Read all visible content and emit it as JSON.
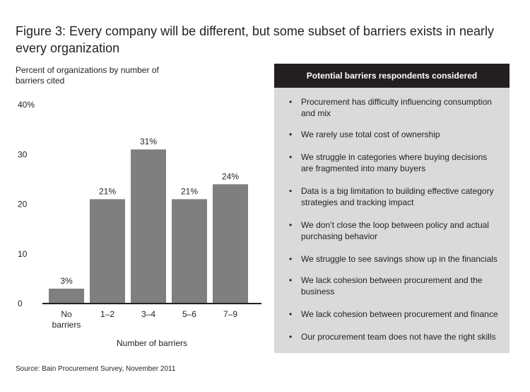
{
  "figure": {
    "title": "Figure 3: Every company will be different, but some subset of barriers exists in nearly every organization",
    "source": "Source: Bain Procurement Survey, November 2011"
  },
  "chart_data": {
    "type": "bar",
    "title": "",
    "ylabel": "Percent of organizations by number of barriers cited",
    "xlabel": "Number of barriers",
    "categories": [
      "No barriers",
      "1–2",
      "3–4",
      "5–6",
      "7–9"
    ],
    "category_lines": [
      [
        "No",
        "barriers"
      ],
      [
        "1–2"
      ],
      [
        "3–4"
      ],
      [
        "5–6"
      ],
      [
        "7–9"
      ]
    ],
    "values": [
      3,
      21,
      31,
      21,
      24
    ],
    "data_labels": [
      "3%",
      "21%",
      "31%",
      "21%",
      "24%"
    ],
    "yticks": [
      0,
      10,
      20,
      30,
      40
    ],
    "ytick_labels": [
      "0",
      "10",
      "20",
      "30",
      "40%"
    ],
    "ylim": [
      0,
      40
    ],
    "grid": false,
    "bar_color": "#7f7f80"
  },
  "panel": {
    "header": "Potential barriers respondents considered",
    "bullet": "•",
    "items": [
      "Procurement has difficulty influencing consumption and mix",
      "We rarely use total cost of ownership",
      "We struggle in categories where buying decisions are fragmented into many buyers",
      "Data is a big limitation to building effective category strategies and tracking impact",
      "We don’t close the loop between policy and actual purchasing behavior",
      "We struggle to see savings show up in the financials",
      "We lack cohesion between procurement and the business",
      "We lack cohesion between procurement and finance",
      "Our procurement team does not have the right skills"
    ]
  }
}
